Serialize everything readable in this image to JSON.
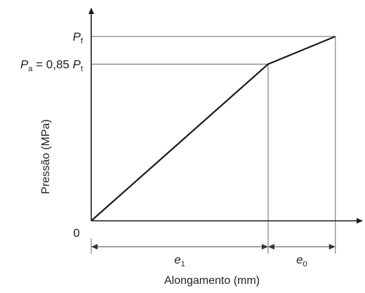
{
  "chart_data": {
    "type": "line",
    "xlabel": "Alongamento (mm)",
    "ylabel": "Pressão (MPa)",
    "origin_label": "0",
    "series": [
      {
        "x": [
          0,
          1,
          1.38
        ],
        "y": [
          0,
          0.85,
          1
        ]
      }
    ],
    "y_markers": [
      {
        "value": 1,
        "main": "P",
        "sub": "f",
        "prefix": ""
      },
      {
        "value": 0.85,
        "main": "P",
        "sub": "a",
        "middle": " = 0,85 ",
        "main2": "P",
        "sub2": "t"
      }
    ],
    "x_markers": [
      1,
      1.38
    ],
    "x_spans": [
      {
        "from": 0,
        "to": 1,
        "main": "e",
        "sub": "1"
      },
      {
        "from": 1,
        "to": 1.38,
        "main": "e",
        "sub": "0"
      }
    ],
    "xlim": [
      0,
      1.38
    ],
    "ylim": [
      0,
      1
    ],
    "grid": false,
    "legend": "none",
    "colors": {
      "curve": "#1a1a1a",
      "axis": "#1a1a1a",
      "guide": "#555555",
      "text": "#222222"
    }
  }
}
